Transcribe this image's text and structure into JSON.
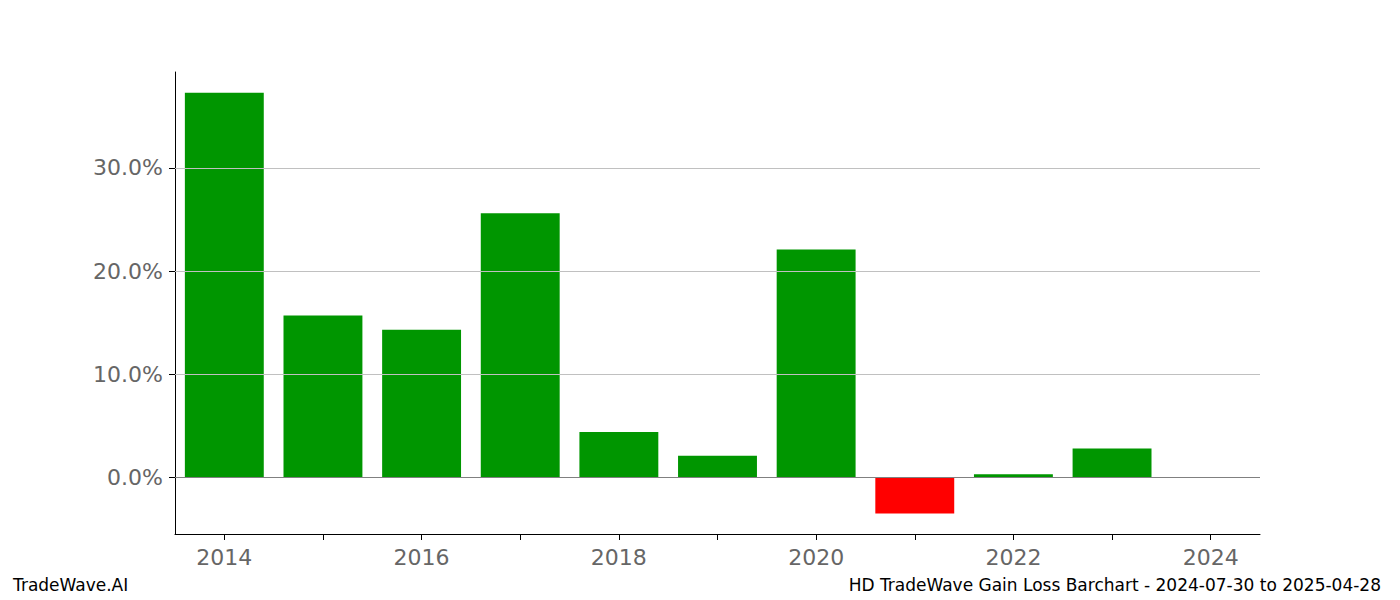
{
  "chart_data": {
    "type": "bar",
    "title": "HD TradeWave Gain Loss Barchart - 2024-07-30 to 2025-04-28",
    "annotations": [
      "TradeWave.AI"
    ],
    "categories": [
      2014,
      null,
      2016,
      null,
      2018,
      null,
      2020,
      null,
      2022,
      null,
      2024
    ],
    "values": [
      37.3,
      15.7,
      14.3,
      25.6,
      4.4,
      2.1,
      22.1,
      -3.5,
      0.3,
      2.8,
      0
    ],
    "colors": [
      "#009600",
      "#009600",
      "#009600",
      "#009600",
      "#009600",
      "#009600",
      "#009600",
      "#ff0000",
      "#009600",
      "#009600",
      "#009600"
    ],
    "ylim": [
      -5.5,
      39.3
    ],
    "yticks": [
      {
        "value": 0,
        "label": "0.0%"
      },
      {
        "value": 10,
        "label": "10.0%"
      },
      {
        "value": 20,
        "label": "20.0%"
      },
      {
        "value": 30,
        "label": "30.0%"
      }
    ],
    "grid": true
  }
}
